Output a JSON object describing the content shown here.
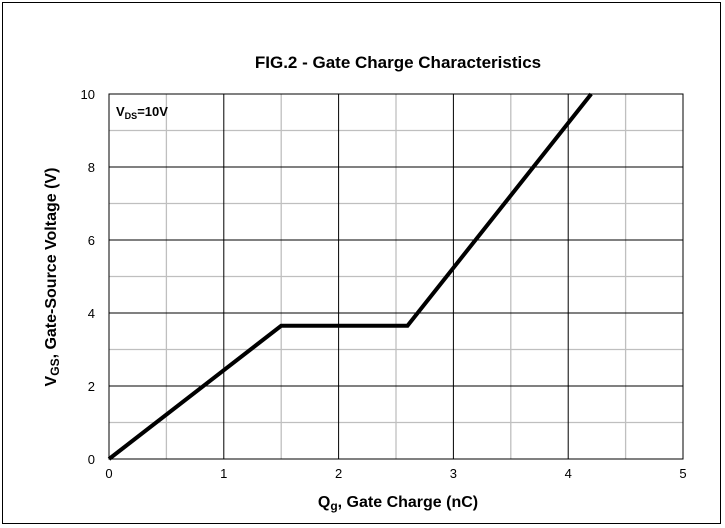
{
  "chart_data": {
    "type": "line",
    "title": "FIG.2 - Gate Charge Characteristics",
    "xlabel": {
      "main": "Q",
      "sub": "g",
      "rest": ", Gate Charge (nC)"
    },
    "ylabel": {
      "main": "V",
      "sub": "GS",
      "rest": ", Gate-Source Voltage (V)"
    },
    "annotation": {
      "main": "V",
      "sub": "DS",
      "rest": "=10V"
    },
    "xlim": [
      0,
      5
    ],
    "ylim": [
      0,
      10
    ],
    "xticks": [
      0,
      1,
      2,
      3,
      4,
      5
    ],
    "yticks": [
      0,
      2,
      4,
      6,
      8,
      10
    ],
    "x_minor_step": 0.5,
    "y_minor_step": 1,
    "grid": true,
    "series": [
      {
        "x": [
          0,
          1.5,
          2.6,
          4.2
        ],
        "y": [
          0,
          3.65,
          3.65,
          10
        ]
      }
    ]
  },
  "colors": {
    "line": "#000000",
    "major_grid": "#000000",
    "minor_grid": "#bfbfbf"
  }
}
